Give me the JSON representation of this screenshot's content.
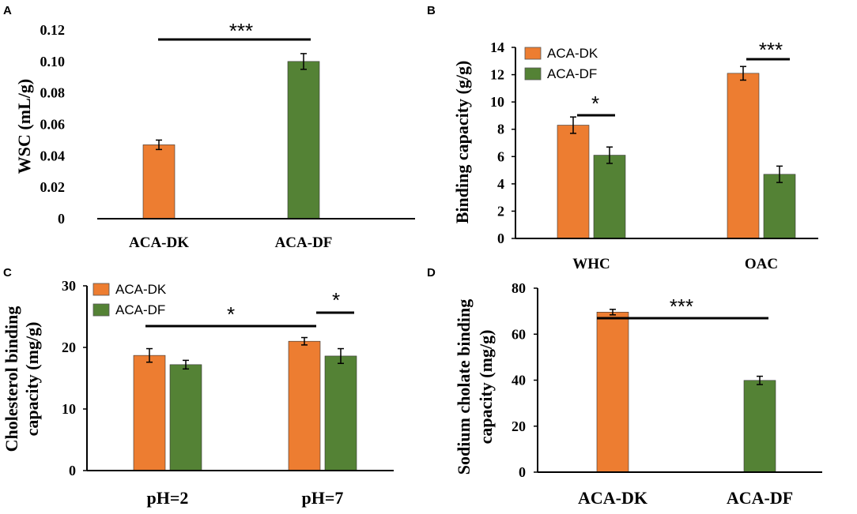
{
  "colors": {
    "ACA-DK": "#ED7D31",
    "ACA-DF": "#548235"
  },
  "chart_data": [
    {
      "panel": "A",
      "type": "bar",
      "ylabel": "WSC  (mL/g)",
      "ylim": [
        0,
        0.12
      ],
      "yticks": [
        0,
        0.02,
        0.04,
        0.06,
        0.08,
        0.1,
        0.12
      ],
      "ytick_labels": [
        "0",
        "0.02",
        "0.04",
        "0.06",
        "0.08",
        "0.10",
        "0.12"
      ],
      "categories": [
        "ACA-DK",
        "ACA-DF"
      ],
      "bar_colors": [
        "#ED7D31",
        "#548235"
      ],
      "values": [
        0.047,
        0.1
      ],
      "errors": [
        0.003,
        0.005
      ],
      "significance": [
        {
          "label": "***",
          "between": "ACA-DK vs ACA-DF"
        }
      ]
    },
    {
      "panel": "B",
      "type": "bar",
      "ylabel": "Binding capacity  (g/g)",
      "ylim": [
        0,
        14
      ],
      "yticks": [
        0,
        2,
        4,
        6,
        8,
        10,
        12,
        14
      ],
      "ytick_labels": [
        "0",
        "2",
        "4",
        "6",
        "8",
        "10",
        "12",
        "14"
      ],
      "categories": [
        "WHC",
        "OAC"
      ],
      "legend": [
        "ACA-DK",
        "ACA-DF"
      ],
      "legend_position": "top-left",
      "series": [
        {
          "name": "ACA-DK",
          "values": [
            8.3,
            12.1
          ],
          "errors": [
            0.6,
            0.5
          ]
        },
        {
          "name": "ACA-DF",
          "values": [
            6.1,
            4.7
          ],
          "errors": [
            0.6,
            0.6
          ]
        }
      ],
      "significance": [
        {
          "label": "*",
          "category": "WHC"
        },
        {
          "label": "***",
          "category": "OAC"
        }
      ]
    },
    {
      "panel": "C",
      "type": "bar",
      "ylabel_lines": [
        "Cholesterol binding",
        "capacity  (mg/g)"
      ],
      "ylim": [
        0,
        30
      ],
      "yticks": [
        0,
        10,
        20,
        30
      ],
      "ytick_labels": [
        "0",
        "10",
        "20",
        "30"
      ],
      "categories": [
        "pH=2",
        "pH=7"
      ],
      "legend": [
        "ACA-DK",
        "ACA-DF"
      ],
      "legend_position": "top-left",
      "series": [
        {
          "name": "ACA-DK",
          "values": [
            18.7,
            21.0
          ],
          "errors": [
            1.1,
            0.6
          ]
        },
        {
          "name": "ACA-DF",
          "values": [
            17.2,
            18.6
          ],
          "errors": [
            0.7,
            1.2
          ]
        }
      ],
      "significance": [
        {
          "label": "*",
          "between": "pH=2 ACA-DK vs pH=7 ACA-DK"
        },
        {
          "label": "*",
          "category": "pH=7"
        }
      ]
    },
    {
      "panel": "D",
      "type": "bar",
      "ylabel_lines": [
        "Sodium cholate binding",
        "capacity  (mg/g)"
      ],
      "ylim": [
        0,
        80
      ],
      "yticks": [
        0,
        20,
        40,
        60,
        80
      ],
      "ytick_labels": [
        "0",
        "20",
        "40",
        "60",
        "80"
      ],
      "categories": [
        "ACA-DK",
        "ACA-DF"
      ],
      "bar_colors": [
        "#ED7D31",
        "#548235"
      ],
      "values": [
        69.6,
        39.9
      ],
      "errors": [
        1.2,
        1.8
      ],
      "significance": [
        {
          "label": "***",
          "between": "ACA-DK vs ACA-DF"
        }
      ]
    }
  ]
}
